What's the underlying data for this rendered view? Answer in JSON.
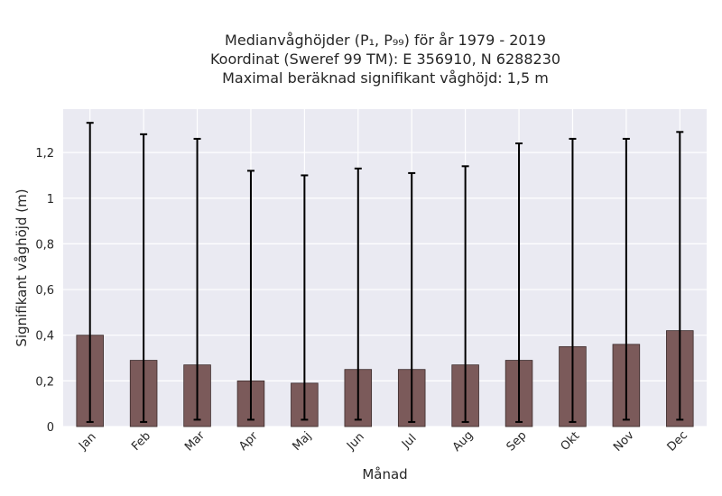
{
  "chart_data": {
    "type": "bar",
    "title_lines": [
      "Medianvåghöjder (P₁, P₉₉) för år 1979 - 2019",
      "Koordinat (Sweref 99 TM): E 356910, N 6288230",
      "Maximal beräknad signifikant våghöjd: 1,5 m"
    ],
    "xlabel": "Månad",
    "ylabel": "Signifikant våghöjd (m)",
    "categories": [
      "Jan",
      "Feb",
      "Mar",
      "Apr",
      "Maj",
      "Jun",
      "Jul",
      "Aug",
      "Sep",
      "Okt",
      "Nov",
      "Dec"
    ],
    "values": [
      0.4,
      0.29,
      0.27,
      0.2,
      0.19,
      0.25,
      0.25,
      0.27,
      0.29,
      0.35,
      0.36,
      0.42
    ],
    "p1": [
      0.02,
      0.02,
      0.03,
      0.03,
      0.03,
      0.03,
      0.02,
      0.02,
      0.02,
      0.02,
      0.03,
      0.03
    ],
    "p99": [
      1.33,
      1.28,
      1.26,
      1.12,
      1.1,
      1.13,
      1.11,
      1.14,
      1.24,
      1.26,
      1.26,
      1.29
    ],
    "ylim": [
      0,
      1.39
    ],
    "yticks": [
      0,
      0.2,
      0.4,
      0.6,
      0.8,
      1,
      1.2
    ],
    "ytick_labels": [
      "0",
      "0,2",
      "0,4",
      "0,6",
      "0,8",
      "1",
      "1,2"
    ],
    "grid": true,
    "bar_color": "#7b5a5a",
    "bar_edge_color": "#3a2a2a",
    "errorbar_color": "#000000",
    "plot_background": "#eaeaf2",
    "grid_color": "#ffffff"
  }
}
